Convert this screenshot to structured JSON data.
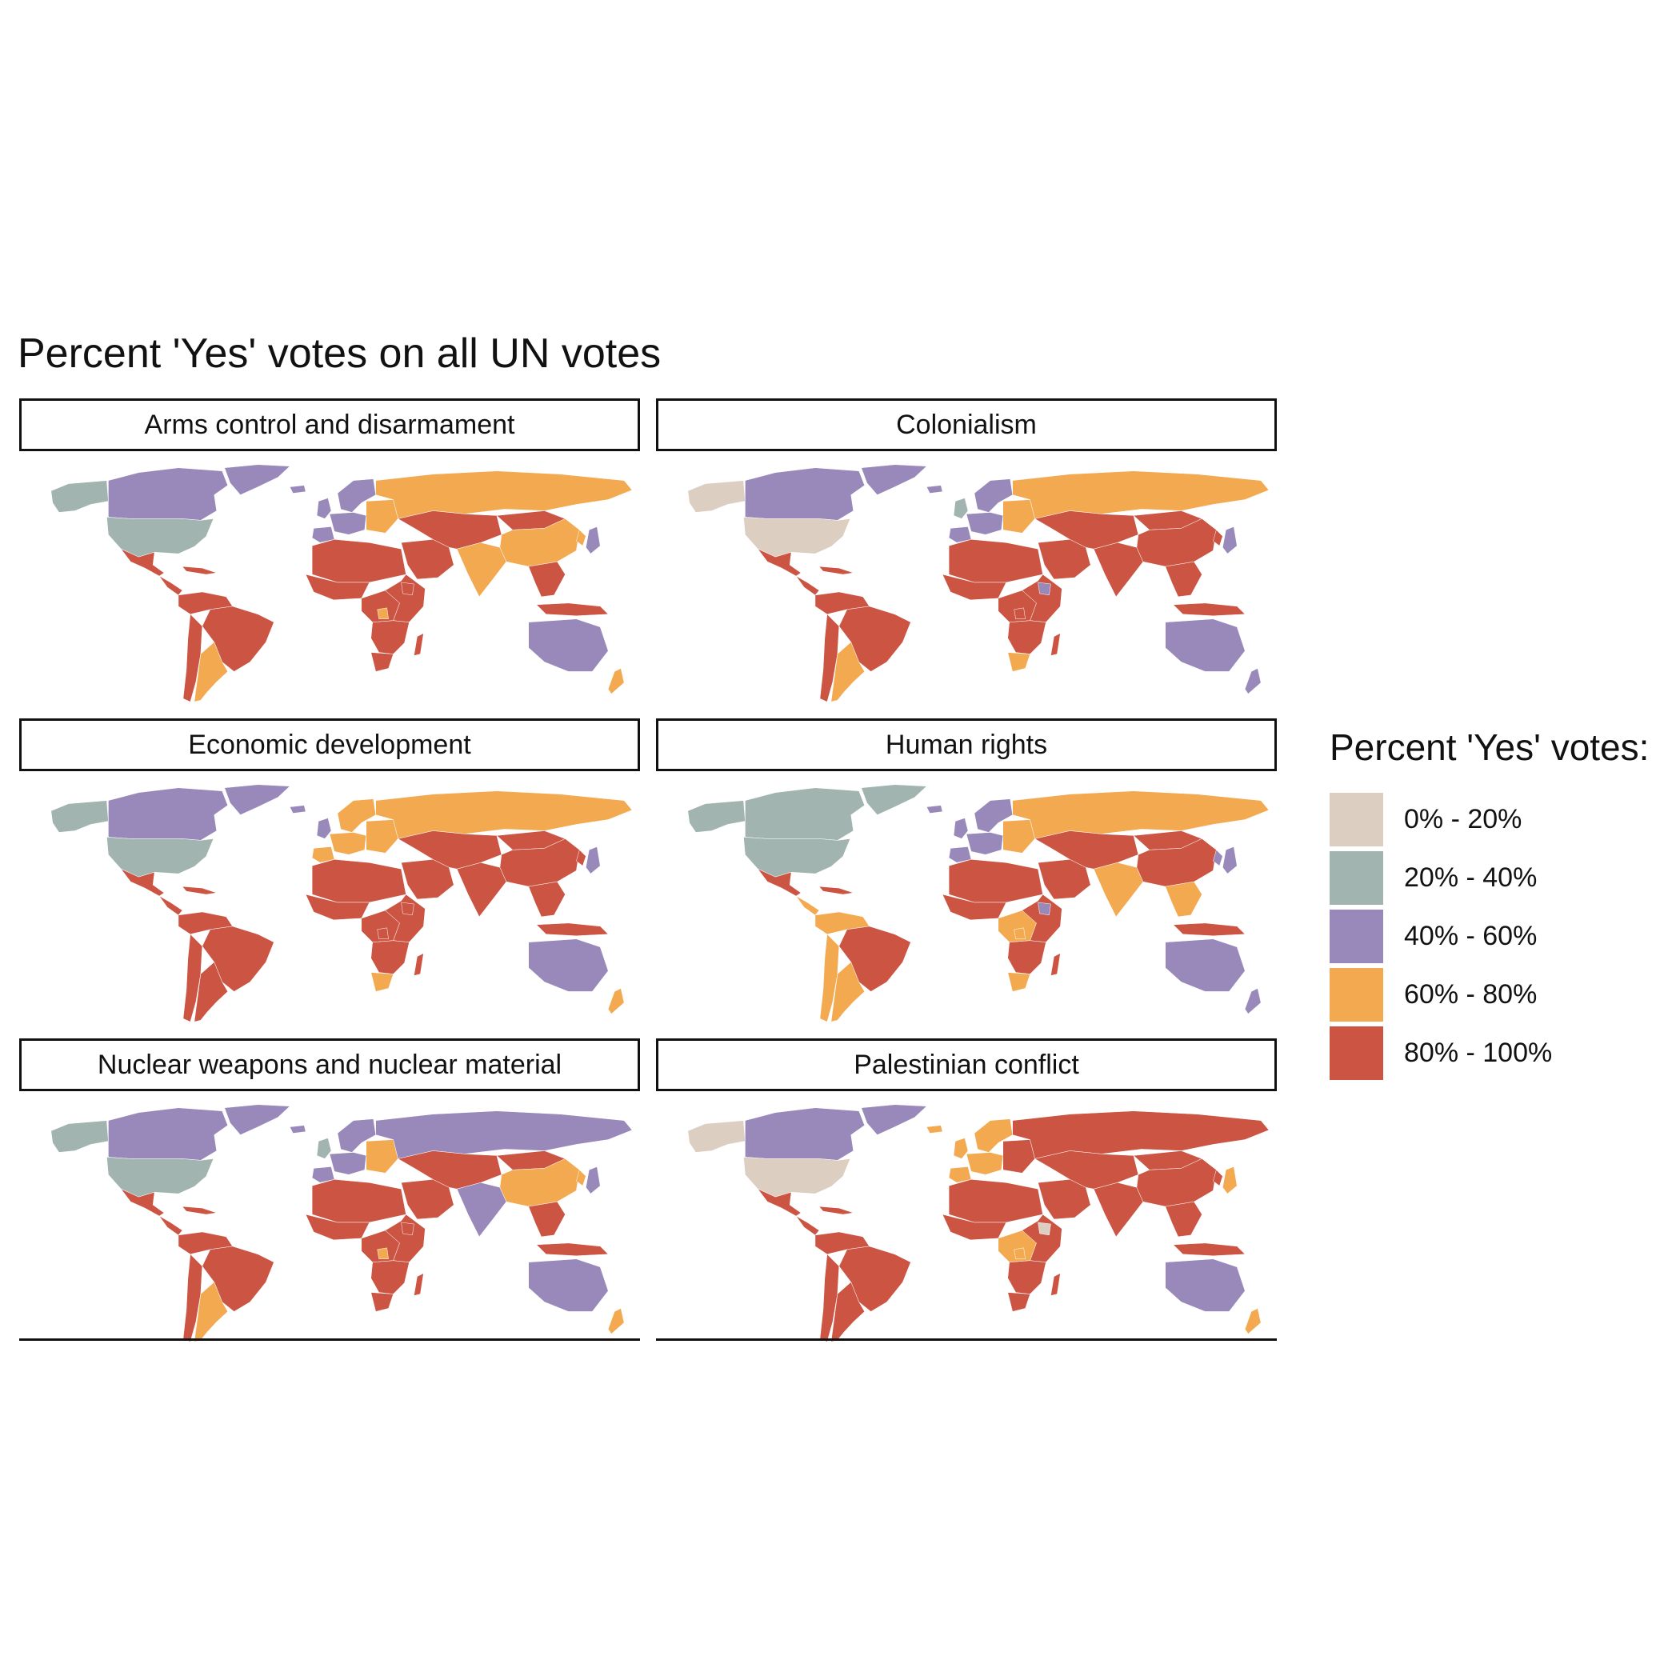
{
  "title": "Percent 'Yes' votes on all UN votes",
  "legend": {
    "title": "Percent 'Yes' votes:",
    "items": [
      {
        "label": "0% - 20%",
        "color": "#DDCEC2"
      },
      {
        "label": "20% - 40%",
        "color": "#A1B4AF"
      },
      {
        "label": "40% - 60%",
        "color": "#9889BA"
      },
      {
        "label": "60% - 80%",
        "color": "#F2A950"
      },
      {
        "label": "80% - 100%",
        "color": "#CC5442"
      }
    ]
  },
  "panels": [
    {
      "label": "Arms control and disarmament",
      "fills": {
        "alaska": "#A1B4AF",
        "canada": "#9889BA",
        "greenland": "#9889BA",
        "usa": "#A1B4AF",
        "mexico": "#CC5442",
        "central_america": "#CC5442",
        "caribbean": "#CC5442",
        "south_america_n": "#CC5442",
        "brazil": "#CC5442",
        "argentina": "#F2A950",
        "chile": "#CC5442",
        "uk": "#9889BA",
        "iceland": "#9889BA",
        "scandinavia": "#9889BA",
        "west_europe": "#9889BA",
        "east_europe": "#F2A950",
        "iberia": "#9889BA",
        "russia": "#F2A950",
        "north_africa": "#CC5442",
        "west_africa": "#CC5442",
        "central_africa": "#CC5442",
        "east_africa": "#CC5442",
        "southern_africa": "#CC5442",
        "south_africa": "#CC5442",
        "madagascar": "#CC5442",
        "middle_east": "#CC5442",
        "iran_central": "#CC5442",
        "india": "#F2A950",
        "china": "#F2A950",
        "mongolia": "#CC5442",
        "southeast_asia": "#CC5442",
        "indonesia": "#CC5442",
        "japan": "#9889BA",
        "korea": "#F2A950",
        "australia": "#9889BA",
        "new_zealand": "#F2A950",
        "ethiopia_spot": "#CC5442",
        "congo_spot": "#F2A950"
      }
    },
    {
      "label": "Colonialism",
      "fills": {
        "alaska": "#DDCEC2",
        "canada": "#9889BA",
        "greenland": "#9889BA",
        "usa": "#DDCEC2",
        "mexico": "#CC5442",
        "central_america": "#CC5442",
        "caribbean": "#CC5442",
        "south_america_n": "#CC5442",
        "brazil": "#CC5442",
        "argentina": "#F2A950",
        "chile": "#CC5442",
        "uk": "#A1B4AF",
        "iceland": "#9889BA",
        "scandinavia": "#9889BA",
        "west_europe": "#9889BA",
        "east_europe": "#F2A950",
        "iberia": "#9889BA",
        "russia": "#F2A950",
        "north_africa": "#CC5442",
        "west_africa": "#CC5442",
        "central_africa": "#CC5442",
        "east_africa": "#CC5442",
        "southern_africa": "#CC5442",
        "south_africa": "#F2A950",
        "madagascar": "#CC5442",
        "middle_east": "#CC5442",
        "iran_central": "#CC5442",
        "india": "#CC5442",
        "china": "#CC5442",
        "mongolia": "#CC5442",
        "southeast_asia": "#CC5442",
        "indonesia": "#CC5442",
        "japan": "#9889BA",
        "korea": "#CC5442",
        "australia": "#9889BA",
        "new_zealand": "#9889BA",
        "ethiopia_spot": "#9889BA",
        "congo_spot": "#CC5442"
      }
    },
    {
      "label": "Economic development",
      "fills": {
        "alaska": "#A1B4AF",
        "canada": "#9889BA",
        "greenland": "#9889BA",
        "usa": "#A1B4AF",
        "mexico": "#CC5442",
        "central_america": "#CC5442",
        "caribbean": "#CC5442",
        "south_america_n": "#CC5442",
        "brazil": "#CC5442",
        "argentina": "#CC5442",
        "chile": "#CC5442",
        "uk": "#9889BA",
        "iceland": "#9889BA",
        "scandinavia": "#F2A950",
        "west_europe": "#F2A950",
        "east_europe": "#F2A950",
        "iberia": "#F2A950",
        "russia": "#F2A950",
        "north_africa": "#CC5442",
        "west_africa": "#CC5442",
        "central_africa": "#CC5442",
        "east_africa": "#CC5442",
        "southern_africa": "#CC5442",
        "south_africa": "#F2A950",
        "madagascar": "#CC5442",
        "middle_east": "#CC5442",
        "iran_central": "#CC5442",
        "india": "#CC5442",
        "china": "#CC5442",
        "mongolia": "#CC5442",
        "southeast_asia": "#CC5442",
        "indonesia": "#CC5442",
        "japan": "#9889BA",
        "korea": "#CC5442",
        "australia": "#9889BA",
        "new_zealand": "#F2A950",
        "ethiopia_spot": "#CC5442",
        "congo_spot": "#CC5442"
      }
    },
    {
      "label": "Human rights",
      "fills": {
        "alaska": "#A1B4AF",
        "canada": "#A1B4AF",
        "greenland": "#A1B4AF",
        "usa": "#A1B4AF",
        "mexico": "#CC5442",
        "central_america": "#F2A950",
        "caribbean": "#CC5442",
        "south_america_n": "#F2A950",
        "brazil": "#CC5442",
        "argentina": "#F2A950",
        "chile": "#F2A950",
        "uk": "#9889BA",
        "iceland": "#9889BA",
        "scandinavia": "#9889BA",
        "west_europe": "#9889BA",
        "east_europe": "#F2A950",
        "iberia": "#9889BA",
        "russia": "#F2A950",
        "north_africa": "#CC5442",
        "west_africa": "#CC5442",
        "central_africa": "#F2A950",
        "east_africa": "#CC5442",
        "southern_africa": "#CC5442",
        "south_africa": "#F2A950",
        "madagascar": "#CC5442",
        "middle_east": "#CC5442",
        "iran_central": "#CC5442",
        "india": "#F2A950",
        "china": "#CC5442",
        "mongolia": "#CC5442",
        "southeast_asia": "#F2A950",
        "indonesia": "#CC5442",
        "japan": "#9889BA",
        "korea": "#9889BA",
        "australia": "#9889BA",
        "new_zealand": "#9889BA",
        "ethiopia_spot": "#9889BA",
        "congo_spot": "#F2A950"
      }
    },
    {
      "label": "Nuclear weapons and nuclear material",
      "fills": {
        "alaska": "#A1B4AF",
        "canada": "#9889BA",
        "greenland": "#9889BA",
        "usa": "#A1B4AF",
        "mexico": "#CC5442",
        "central_america": "#CC5442",
        "caribbean": "#CC5442",
        "south_america_n": "#CC5442",
        "brazil": "#CC5442",
        "argentina": "#F2A950",
        "chile": "#CC5442",
        "uk": "#A1B4AF",
        "iceland": "#9889BA",
        "scandinavia": "#9889BA",
        "west_europe": "#9889BA",
        "east_europe": "#F2A950",
        "iberia": "#9889BA",
        "russia": "#9889BA",
        "north_africa": "#CC5442",
        "west_africa": "#CC5442",
        "central_africa": "#CC5442",
        "east_africa": "#CC5442",
        "southern_africa": "#CC5442",
        "south_africa": "#CC5442",
        "madagascar": "#CC5442",
        "middle_east": "#CC5442",
        "iran_central": "#CC5442",
        "india": "#9889BA",
        "china": "#F2A950",
        "mongolia": "#CC5442",
        "southeast_asia": "#CC5442",
        "indonesia": "#CC5442",
        "japan": "#9889BA",
        "korea": "#F2A950",
        "australia": "#9889BA",
        "new_zealand": "#F2A950",
        "ethiopia_spot": "#CC5442",
        "congo_spot": "#F2A950"
      }
    },
    {
      "label": "Palestinian conflict",
      "fills": {
        "alaska": "#DDCEC2",
        "canada": "#9889BA",
        "greenland": "#9889BA",
        "usa": "#DDCEC2",
        "mexico": "#CC5442",
        "central_america": "#CC5442",
        "caribbean": "#CC5442",
        "south_america_n": "#CC5442",
        "brazil": "#CC5442",
        "argentina": "#CC5442",
        "chile": "#CC5442",
        "uk": "#F2A950",
        "iceland": "#F2A950",
        "scandinavia": "#F2A950",
        "west_europe": "#F2A950",
        "east_europe": "#CC5442",
        "iberia": "#F2A950",
        "russia": "#CC5442",
        "north_africa": "#CC5442",
        "west_africa": "#CC5442",
        "central_africa": "#F2A950",
        "east_africa": "#CC5442",
        "southern_africa": "#CC5442",
        "south_africa": "#CC5442",
        "madagascar": "#CC5442",
        "middle_east": "#CC5442",
        "iran_central": "#CC5442",
        "india": "#CC5442",
        "china": "#CC5442",
        "mongolia": "#CC5442",
        "southeast_asia": "#CC5442",
        "indonesia": "#CC5442",
        "japan": "#F2A950",
        "korea": "#CC5442",
        "australia": "#9889BA",
        "new_zealand": "#F2A950",
        "ethiopia_spot": "#DDCEC2",
        "congo_spot": "#F2A950"
      }
    }
  ]
}
